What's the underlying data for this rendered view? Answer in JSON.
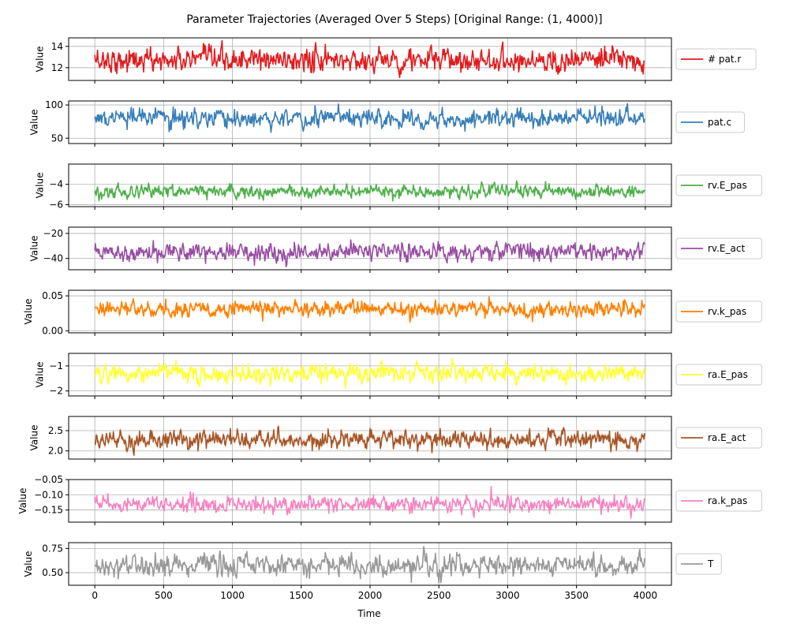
{
  "chart_data": {
    "type": "line",
    "title": "Parameter Trajectories (Averaged Over 5 Steps) [Original Range: (1, 4000)]",
    "xlabel": "Time",
    "xlim": [
      -190,
      4190
    ],
    "xticks": [
      0,
      500,
      1000,
      1500,
      2000,
      2500,
      3000,
      3500,
      4000
    ],
    "grid": true,
    "legend_placement": "right of each panel",
    "x_step": 5,
    "n_points": 800,
    "panels": [
      {
        "name": "# pat.r",
        "color": "#e41a1c",
        "ylabel": "Value",
        "ylim": [
          10.8,
          14.8
        ],
        "yticks": [
          12,
          14
        ],
        "ytick_labels": [
          "12",
          "14"
        ],
        "mean": 12.7,
        "std": 0.55,
        "band": false
      },
      {
        "name": "pat.c",
        "color": "#377eb8",
        "ylabel": "Value",
        "ylim": [
          42,
          106
        ],
        "yticks": [
          50,
          100
        ],
        "ytick_labels": [
          "50",
          "100"
        ],
        "mean": 80,
        "std": 7,
        "band": false
      },
      {
        "name": "rv.E_pas",
        "color": "#4daf4a",
        "ylabel": "Value",
        "ylim": [
          -6.2,
          -2.0
        ],
        "yticks": [
          -6,
          -4
        ],
        "ytick_labels": [
          "−6",
          "−4"
        ],
        "mean": -4.7,
        "std": 0.32,
        "band": true
      },
      {
        "name": "rv.E_act",
        "color": "#984ea3",
        "ylabel": "Value",
        "ylim": [
          -49,
          -15
        ],
        "yticks": [
          -40,
          -20
        ],
        "ytick_labels": [
          "−40",
          "−20"
        ],
        "mean": -34.5,
        "std": 3.6,
        "band": false
      },
      {
        "name": "rv.k_pas",
        "color": "#ff7f00",
        "ylabel": "Value",
        "ylim": [
          -0.003,
          0.058
        ],
        "yticks": [
          0.0,
          0.05
        ],
        "ytick_labels": [
          "0.00",
          "0.05"
        ],
        "mean": 0.031,
        "std": 0.0055,
        "band": true
      },
      {
        "name": "ra.E_pas",
        "color": "#ffff33",
        "ylabel": "Value",
        "ylim": [
          -2.2,
          -0.5
        ],
        "yticks": [
          -2,
          -1
        ],
        "ytick_labels": [
          "−2",
          "−1"
        ],
        "mean": -1.3,
        "std": 0.18,
        "band": true
      },
      {
        "name": "ra.E_act",
        "color": "#a65628",
        "ylabel": "Value",
        "ylim": [
          1.8,
          2.85
        ],
        "yticks": [
          2.0,
          2.5
        ],
        "ytick_labels": [
          "2.0",
          "2.5"
        ],
        "mean": 2.28,
        "std": 0.11,
        "band": true
      },
      {
        "name": "ra.k_pas",
        "color": "#f781bf",
        "ylabel": "Value",
        "ylim": [
          -0.19,
          -0.05
        ],
        "yticks": [
          -0.15,
          -0.1,
          -0.05
        ],
        "ytick_labels": [
          "−0.15",
          "−0.10",
          "−0.05"
        ],
        "mean": -0.132,
        "std": 0.013,
        "band": false
      },
      {
        "name": "T",
        "color": "#999999",
        "ylabel": "Value",
        "ylim": [
          0.37,
          0.81
        ],
        "yticks": [
          0.5,
          0.75
        ],
        "ytick_labels": [
          "0.50",
          "0.75"
        ],
        "mean": 0.575,
        "std": 0.055,
        "band": false
      }
    ]
  }
}
